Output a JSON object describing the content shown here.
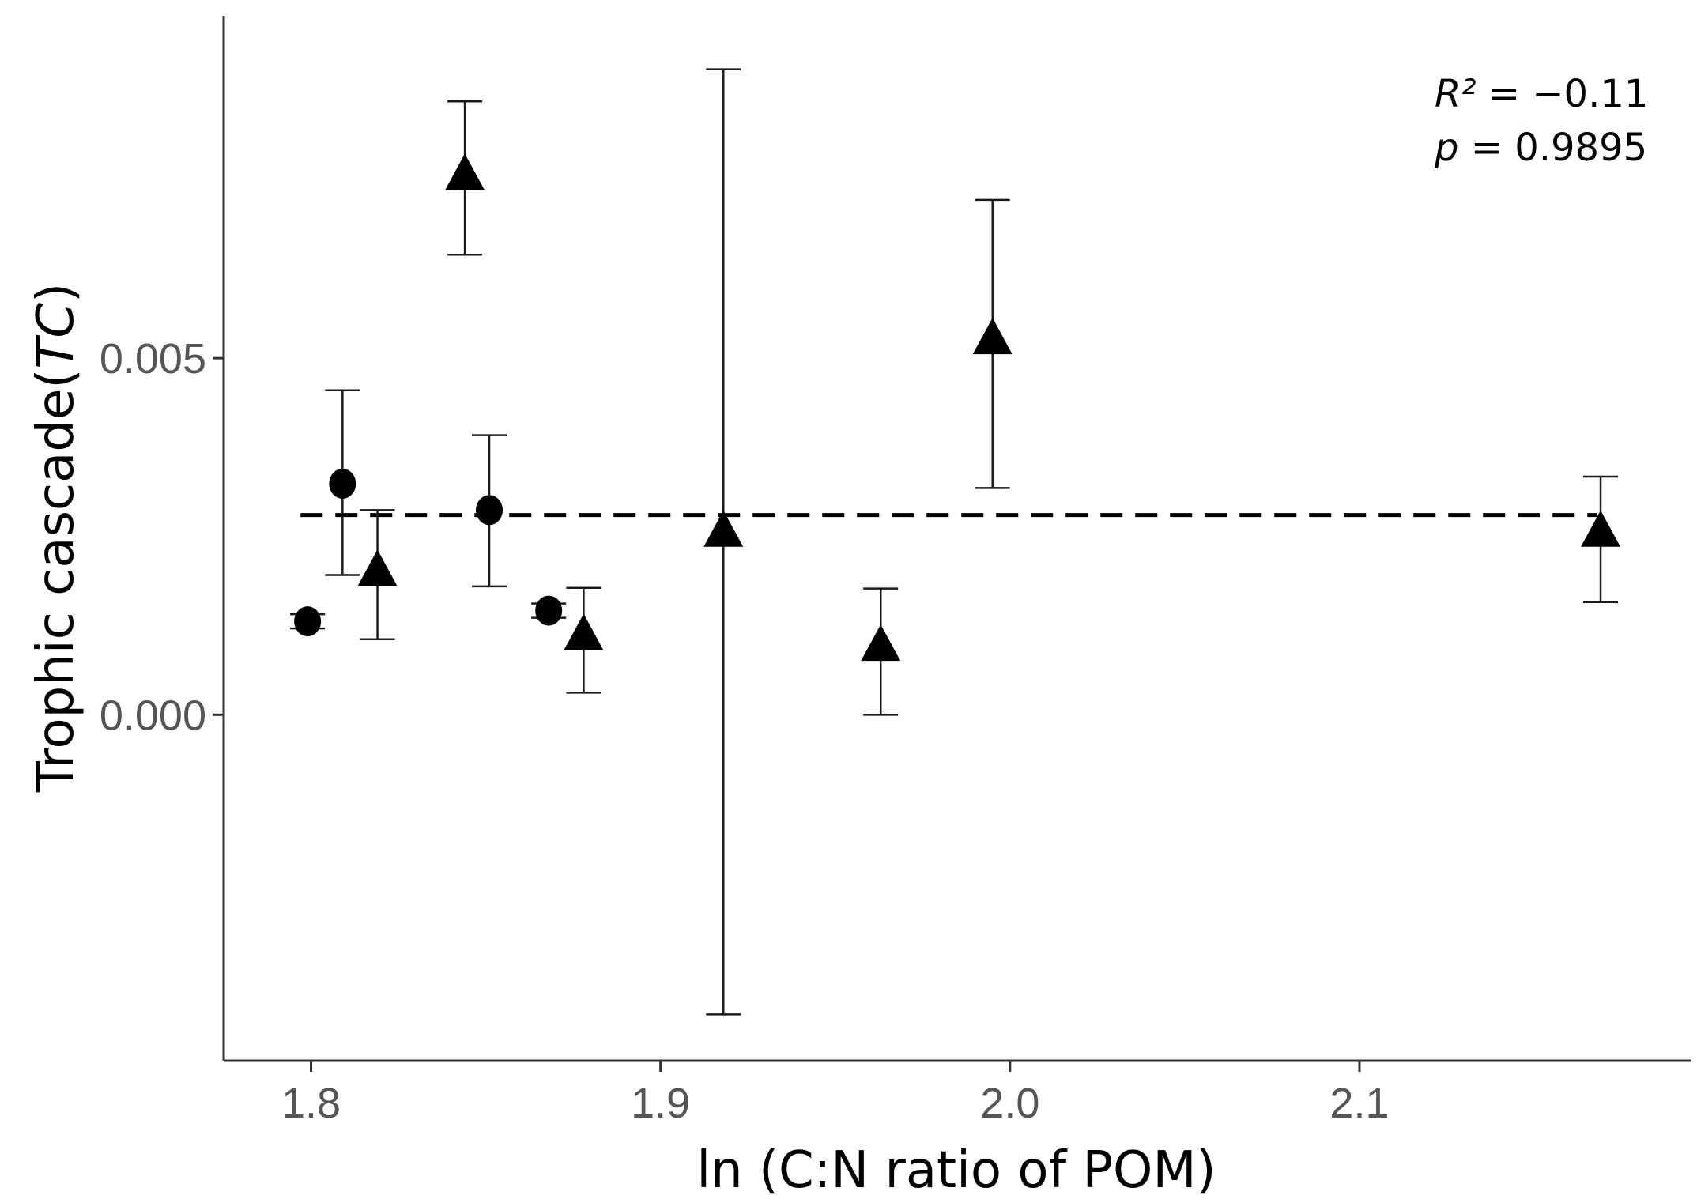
{
  "chart_data": {
    "type": "scatter",
    "title": "",
    "xlabel": "ln (C:N ratio of POM)",
    "ylabel_main": "Trophic cascade(",
    "ylabel_italic": "TC",
    "ylabel_close": ")",
    "xlim": [
      1.775,
      2.195
    ],
    "ylim": [
      -0.00485,
      0.0098
    ],
    "xticks": [
      1.8,
      1.9,
      2.0,
      2.1
    ],
    "xtick_labels": [
      "1.8",
      "1.9",
      "2.0",
      "2.1"
    ],
    "yticks": [
      0.0,
      0.005
    ],
    "ytick_labels": [
      "0.000",
      "0.005"
    ],
    "grid": false,
    "annotations": {
      "r2_label": "R²",
      "r2_value": " = −0.11",
      "p_label": "p",
      "p_value": " = 0.9895"
    },
    "fit_line": {
      "style": "dashed",
      "x": [
        1.797,
        2.168
      ],
      "y": [
        0.0028,
        0.0028
      ]
    },
    "series": [
      {
        "name": "circles",
        "marker": "circle",
        "points": [
          {
            "x": 1.799,
            "y": 0.00131,
            "ymin": 0.00121,
            "ymax": 0.00141
          },
          {
            "x": 1.809,
            "y": 0.00324,
            "ymin": 0.00196,
            "ymax": 0.00455
          },
          {
            "x": 1.851,
            "y": 0.00287,
            "ymin": 0.0018,
            "ymax": 0.00392
          },
          {
            "x": 1.868,
            "y": 0.00146,
            "ymin": 0.00136,
            "ymax": 0.00156
          }
        ]
      },
      {
        "name": "triangles",
        "marker": "triangle",
        "points": [
          {
            "x": 1.819,
            "y": 0.002,
            "ymin": 0.00106,
            "ymax": 0.00287
          },
          {
            "x": 1.844,
            "y": 0.00755,
            "ymin": 0.00645,
            "ymax": 0.0086
          },
          {
            "x": 1.878,
            "y": 0.0011,
            "ymin": 0.00031,
            "ymax": 0.00178
          },
          {
            "x": 1.918,
            "y": 0.00255,
            "ymin": -0.0042,
            "ymax": 0.00905
          },
          {
            "x": 1.963,
            "y": 0.00095,
            "ymin": 0.0,
            "ymax": 0.00177
          },
          {
            "x": 1.995,
            "y": 0.00525,
            "ymin": 0.00318,
            "ymax": 0.00722
          },
          {
            "x": 2.169,
            "y": 0.00255,
            "ymin": 0.00158,
            "ymax": 0.00334
          }
        ]
      }
    ]
  }
}
